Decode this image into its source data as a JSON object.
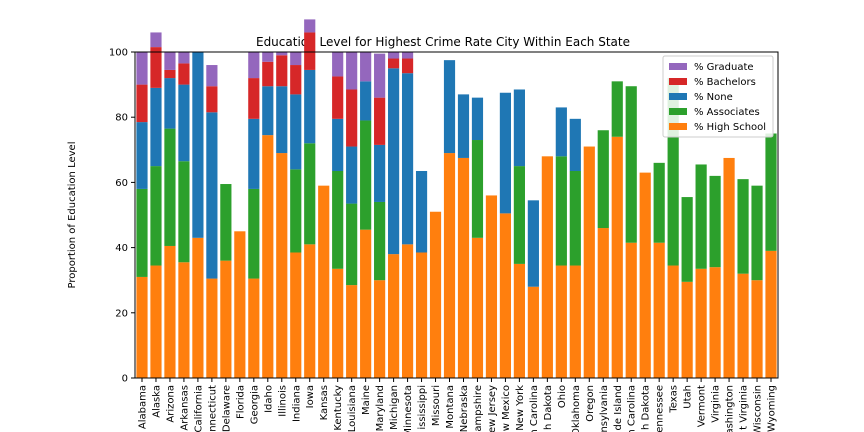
{
  "chart_data": {
    "type": "bar",
    "stacked": true,
    "title": "Education Level for Highest Crime Rate City Within Each State",
    "xlabel": "",
    "ylabel": "Proportion of Education Level",
    "ylim": [
      0,
      100
    ],
    "yticks": [
      0,
      20,
      40,
      60,
      80,
      100
    ],
    "grid": false,
    "legend_position": "top-right",
    "categories": [
      "Alabama",
      "Alaska",
      "Arizona",
      "Arkansas",
      "California",
      "Connecticut",
      "Delaware",
      "Florida",
      "Georgia",
      "Idaho",
      "Illinois",
      "Indiana",
      "Iowa",
      "Kansas",
      "Kentucky",
      "Louisiana",
      "Maine",
      "Maryland",
      "Michigan",
      "Minnesota",
      "Mississippi",
      "Missouri",
      "Montana",
      "Nebraska",
      "New Hampshire",
      "New Jersey",
      "New Mexico",
      "New York",
      "North Carolina",
      "North Dakota",
      "Ohio",
      "Oklahoma",
      "Oregon",
      "Pennsylvania",
      "Rhode Island",
      "South Carolina",
      "South Dakota",
      "Tennessee",
      "Texas",
      "Utah",
      "Vermont",
      "Virginia",
      "Washington",
      "West Virginia",
      "Wisconsin",
      "Wyoming"
    ],
    "tick_labels": [
      "Alabama",
      "Alaska",
      "Arizona",
      "Arkansas",
      "California",
      "nnecticut",
      "Delaware",
      "Florida",
      "Georgia",
      "Idaho",
      "Illinois",
      "Indiana",
      "Iowa",
      "Kansas",
      "Kentucky",
      "Louisiana",
      "Maine",
      "Maryland",
      "Michigan",
      "Minnesota",
      "ississippi",
      "Missouri",
      "Montana",
      "Nebraska",
      "ampshire",
      "New Jersey",
      "w Mexico",
      "New York",
      "h Carolina",
      "h Dakota",
      "Ohio",
      "Oklahoma",
      "Oregon",
      "nsylvania",
      "de Island",
      "h Carolina",
      "h Dakota",
      "ennessee",
      "Texas",
      "Utah",
      "Vermont",
      "Virginia",
      "ashington",
      "t Virginia",
      "Wisconsin",
      "Wyoming"
    ],
    "series": [
      {
        "name": "% High School",
        "color": "#ff7f0e",
        "values": [
          31,
          34.5,
          40.5,
          35.5,
          43,
          30.5,
          36,
          45,
          30.5,
          74.5,
          69,
          38.5,
          41,
          59,
          33.5,
          28.5,
          45.5,
          30,
          38,
          41,
          38.5,
          51,
          69,
          67.5,
          43,
          56,
          50.5,
          35,
          28,
          68,
          34.5,
          34.5,
          71,
          46,
          74,
          41.5,
          63,
          41.5,
          34.5,
          29.5,
          33.5,
          34,
          67.5,
          32,
          30,
          39
        ]
      },
      {
        "name": "% Associates",
        "color": "#2ca02c",
        "values": [
          27,
          30.5,
          36,
          31,
          0,
          0,
          23.5,
          0,
          27.5,
          0,
          0,
          25.5,
          31,
          0,
          30,
          25,
          33.5,
          24,
          0,
          0,
          0,
          0,
          0,
          0,
          30,
          0,
          0,
          30,
          0,
          0,
          33.5,
          29,
          0,
          30,
          17,
          48,
          0,
          24.5,
          57.5,
          26,
          32,
          28,
          0,
          29,
          29,
          36
        ]
      },
      {
        "name": "% None",
        "color": "#1f77b4",
        "values": [
          20.5,
          24,
          15.5,
          23.5,
          57,
          51,
          0,
          0,
          21.5,
          15,
          20.5,
          23,
          22.5,
          0,
          16,
          17.5,
          12,
          17.5,
          57,
          52.5,
          25,
          0,
          28.5,
          19.5,
          13,
          0,
          37,
          23.5,
          26.5,
          0,
          15,
          16,
          0,
          0,
          0,
          0,
          0,
          0,
          0,
          0,
          0,
          0,
          0,
          0,
          0,
          0
        ]
      },
      {
        "name": "% Bachelors",
        "color": "#d62728",
        "values": [
          11.5,
          12.5,
          2.5,
          6.5,
          0,
          8,
          0,
          0,
          12.5,
          7.5,
          9.5,
          9,
          11.5,
          0,
          13,
          17.5,
          0,
          14.5,
          3,
          4.5,
          0,
          0,
          0,
          0,
          0,
          0,
          0,
          0,
          0,
          0,
          0,
          0,
          0,
          0,
          0,
          0,
          0,
          0,
          0,
          0,
          0,
          0,
          0,
          0,
          0,
          0
        ]
      },
      {
        "name": "% Graduate",
        "color": "#9467bd",
        "values": [
          10,
          4.5,
          5.5,
          3.5,
          0,
          6.5,
          0,
          0,
          8,
          3,
          1,
          4,
          4,
          0,
          7.5,
          11.5,
          9,
          13.5,
          2,
          2,
          0,
          0,
          0,
          0,
          0,
          0,
          0,
          0,
          0,
          0,
          0,
          0,
          0,
          0,
          0,
          0,
          0,
          0,
          0,
          0,
          0,
          0,
          0,
          0,
          0,
          0
        ]
      }
    ]
  }
}
